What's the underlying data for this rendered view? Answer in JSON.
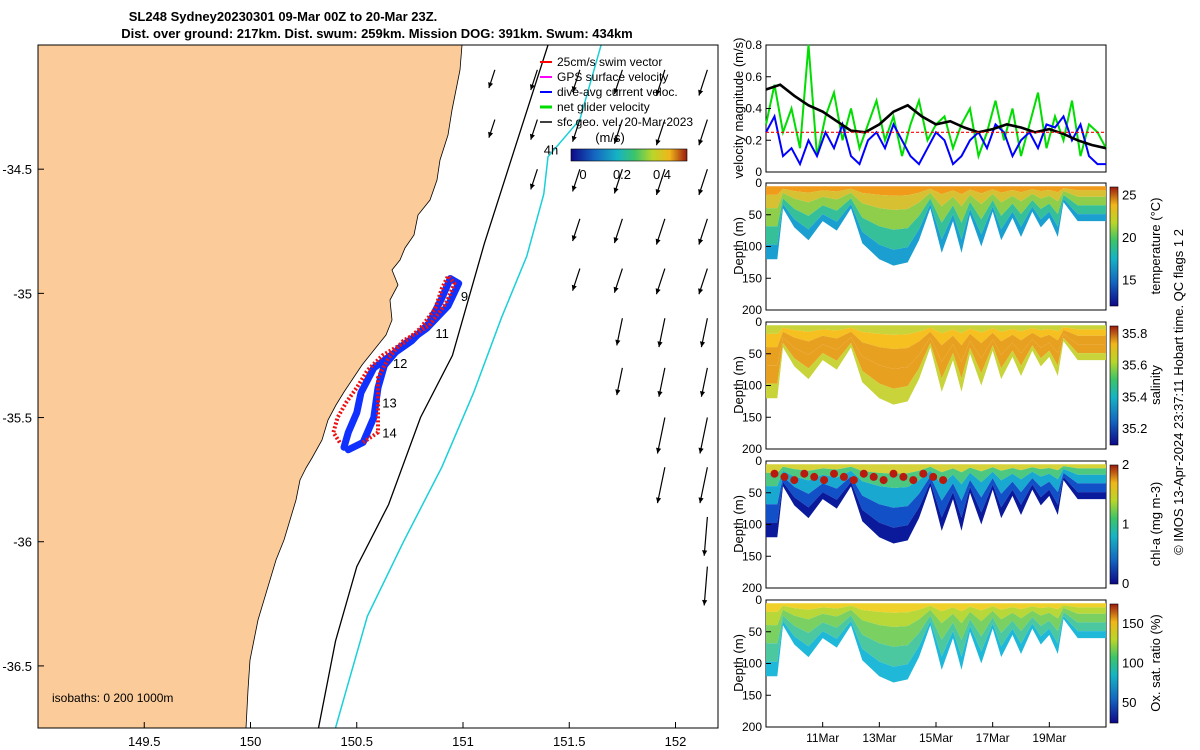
{
  "title": {
    "line1": "SL248 Sydney20230301 09-Mar 00Z to 20-Mar 23Z.",
    "line2": "Dist. over ground: 217km. Dist. swum: 259km. Mission DOG: 391km. Swum: 434km"
  },
  "side_label": "© IMOS 13-Apr-2024 23:37:11 Hobart time. QC flags 1  2",
  "chart_data": [
    {
      "type": "map",
      "name": "glider-track-map",
      "x_ticks": [
        "149.5",
        "150",
        "150.5",
        "151",
        "151.5",
        "152"
      ],
      "y_ticks": [
        "-34.5",
        "-35",
        "-35.5",
        "-36",
        "-36.5"
      ],
      "xlim": [
        149.0,
        152.2
      ],
      "ylim": [
        -36.75,
        -34.0
      ],
      "isobaths_label": "isobaths: 0   200  1000m",
      "legend": [
        {
          "label": "25cm/s swim vector",
          "color": "#ff0000"
        },
        {
          "label": "GPS surface velocity",
          "color": "#ff00ff"
        },
        {
          "label": "dive-avg current veloc.",
          "color": "#0000ff"
        },
        {
          "label": "net glider velocity",
          "color": "#00dd00"
        },
        {
          "label": "sfc geo. vel. 20-Mar-2023",
          "color": "#000000"
        }
      ],
      "colorbar": {
        "label": "(m/s)",
        "ticks": [
          "0",
          "0.2",
          "0.4"
        ],
        "range": [
          0,
          0.5
        ]
      },
      "track_labels": [
        {
          "text": "9",
          "lon": 150.99,
          "lat": -35.03
        },
        {
          "text": "11",
          "lon": 150.87,
          "lat": -35.18
        },
        {
          "text": "12",
          "lon": 150.67,
          "lat": -35.3
        },
        {
          "text": "13",
          "lon": 150.62,
          "lat": -35.46
        },
        {
          "text": "14",
          "lon": 150.62,
          "lat": -35.58
        },
        {
          "text": "4h",
          "lon": 151.38,
          "lat": -34.44
        }
      ],
      "track_red": [
        [
          150.42,
          -35.6
        ],
        [
          150.39,
          -35.56
        ],
        [
          150.41,
          -35.5
        ],
        [
          150.45,
          -35.44
        ],
        [
          150.5,
          -35.38
        ],
        [
          150.55,
          -35.31
        ],
        [
          150.62,
          -35.25
        ],
        [
          150.72,
          -35.2
        ],
        [
          150.8,
          -35.14
        ],
        [
          150.87,
          -35.06
        ],
        [
          150.9,
          -34.98
        ],
        [
          150.93,
          -34.93
        ],
        [
          150.96,
          -34.96
        ],
        [
          150.92,
          -35.04
        ],
        [
          150.84,
          -35.13
        ],
        [
          150.72,
          -35.19
        ],
        [
          150.65,
          -35.26
        ],
        [
          150.6,
          -35.34
        ],
        [
          150.6,
          -35.45
        ],
        [
          150.6,
          -35.56
        ],
        [
          150.53,
          -35.6
        ]
      ],
      "track_blue": [
        [
          150.44,
          -35.62
        ],
        [
          150.46,
          -35.56
        ],
        [
          150.5,
          -35.48
        ],
        [
          150.52,
          -35.4
        ],
        [
          150.58,
          -35.3
        ],
        [
          150.66,
          -35.25
        ],
        [
          150.76,
          -35.19
        ],
        [
          150.84,
          -35.12
        ],
        [
          150.9,
          -35.02
        ],
        [
          150.94,
          -34.94
        ],
        [
          150.98,
          -34.96
        ],
        [
          150.93,
          -35.05
        ],
        [
          150.83,
          -35.14
        ],
        [
          150.7,
          -35.22
        ],
        [
          150.63,
          -35.29
        ],
        [
          150.6,
          -35.38
        ],
        [
          150.58,
          -35.5
        ],
        [
          150.53,
          -35.6
        ],
        [
          150.46,
          -35.63
        ]
      ],
      "isobath_200": [
        [
          151.4,
          -34.0
        ],
        [
          151.25,
          -34.4
        ],
        [
          151.1,
          -34.8
        ],
        [
          150.95,
          -35.25
        ],
        [
          150.8,
          -35.5
        ],
        [
          150.65,
          -35.85
        ],
        [
          150.5,
          -36.1
        ],
        [
          150.4,
          -36.4
        ],
        [
          150.32,
          -36.75
        ]
      ],
      "isobath_1000": [
        [
          151.65,
          -34.0
        ],
        [
          151.55,
          -34.3
        ],
        [
          151.4,
          -34.45
        ],
        [
          151.38,
          -34.6
        ],
        [
          151.3,
          -34.85
        ],
        [
          151.18,
          -35.1
        ],
        [
          151.05,
          -35.4
        ],
        [
          150.9,
          -35.7
        ],
        [
          150.72,
          -36.0
        ],
        [
          150.55,
          -36.3
        ],
        [
          150.45,
          -36.6
        ],
        [
          150.4,
          -36.75
        ]
      ]
    },
    {
      "type": "line",
      "name": "velocity-magnitude",
      "ylabel": "velocity magnitude (m/s)",
      "ylim": [
        0,
        0.8
      ],
      "y_ticks": [
        "0",
        "0.2",
        "0.4",
        "0.6",
        "0.8"
      ],
      "x_range_days": [
        9.0,
        21.0
      ],
      "series": [
        {
          "name": "net glider velocity",
          "color": "#00dd00",
          "x": [
            9.0,
            9.3,
            9.6,
            9.9,
            10.2,
            10.5,
            10.8,
            11.1,
            11.4,
            11.7,
            12.0,
            12.3,
            12.6,
            12.9,
            13.2,
            13.5,
            13.8,
            14.1,
            14.4,
            14.7,
            15.0,
            15.3,
            15.6,
            15.9,
            16.2,
            16.5,
            16.8,
            17.1,
            17.4,
            17.7,
            18.0,
            18.3,
            18.6,
            18.9,
            19.2,
            19.5,
            19.8,
            20.1,
            20.4,
            20.7,
            21.0
          ],
          "values": [
            0.3,
            0.55,
            0.25,
            0.4,
            0.15,
            0.8,
            0.1,
            0.35,
            0.5,
            0.2,
            0.4,
            0.15,
            0.3,
            0.45,
            0.2,
            0.35,
            0.1,
            0.3,
            0.45,
            0.2,
            0.3,
            0.35,
            0.15,
            0.3,
            0.4,
            0.1,
            0.25,
            0.45,
            0.2,
            0.4,
            0.1,
            0.3,
            0.5,
            0.15,
            0.35,
            0.2,
            0.45,
            0.1,
            0.3,
            0.25,
            0.15
          ]
        },
        {
          "name": "dive-avg current veloc.",
          "color": "#0000ff",
          "x": [
            9.0,
            9.3,
            9.6,
            9.9,
            10.2,
            10.5,
            10.8,
            11.1,
            11.4,
            11.7,
            12.0,
            12.3,
            12.6,
            12.9,
            13.2,
            13.5,
            13.8,
            14.1,
            14.4,
            14.7,
            15.0,
            15.3,
            15.6,
            15.9,
            16.2,
            16.5,
            16.8,
            17.1,
            17.4,
            17.7,
            18.0,
            18.3,
            18.6,
            18.9,
            19.2,
            19.5,
            19.8,
            20.1,
            20.4,
            20.7,
            21.0
          ],
          "values": [
            0.25,
            0.35,
            0.1,
            0.15,
            0.05,
            0.2,
            0.1,
            0.25,
            0.15,
            0.3,
            0.1,
            0.05,
            0.2,
            0.25,
            0.15,
            0.3,
            0.2,
            0.1,
            0.05,
            0.15,
            0.25,
            0.2,
            0.05,
            0.1,
            0.2,
            0.25,
            0.15,
            0.3,
            0.25,
            0.1,
            0.2,
            0.25,
            0.15,
            0.3,
            0.28,
            0.35,
            0.2,
            0.3,
            0.1,
            0.05,
            0.05
          ]
        },
        {
          "name": "GPS surface velocity",
          "color": "#000000",
          "x": [
            9.0,
            9.5,
            10.0,
            10.5,
            11.0,
            11.5,
            12.0,
            12.5,
            13.0,
            13.5,
            14.0,
            14.5,
            15.0,
            15.5,
            16.0,
            16.5,
            17.0,
            17.5,
            18.0,
            18.5,
            19.0,
            19.5,
            20.0,
            20.5,
            21.0
          ],
          "values": [
            0.52,
            0.55,
            0.48,
            0.42,
            0.38,
            0.32,
            0.26,
            0.25,
            0.3,
            0.38,
            0.42,
            0.35,
            0.3,
            0.32,
            0.28,
            0.25,
            0.27,
            0.3,
            0.28,
            0.25,
            0.27,
            0.24,
            0.2,
            0.17,
            0.15
          ]
        },
        {
          "name": "25cm/s swim vector",
          "color": "#ff0000",
          "x": [
            9.0,
            21.0
          ],
          "values": [
            0.25,
            0.25
          ]
        }
      ]
    },
    {
      "type": "heatmap",
      "name": "temperature-section",
      "ylabel": "Depth (m)",
      "y_ticks": [
        "0",
        "50",
        "100",
        "150",
        "200"
      ],
      "colorbar_label": "temperature (°C)",
      "colorbar_ticks": [
        "15",
        "20",
        "25"
      ],
      "colorbar_range": [
        12,
        26
      ]
    },
    {
      "type": "heatmap",
      "name": "salinity-section",
      "ylabel": "Depth (m)",
      "y_ticks": [
        "0",
        "50",
        "100",
        "150",
        "200"
      ],
      "colorbar_label": "salinity",
      "colorbar_ticks": [
        "35.2",
        "35.4",
        "35.6",
        "35.8"
      ],
      "colorbar_range": [
        35.1,
        35.85
      ]
    },
    {
      "type": "heatmap",
      "name": "chl-a-section",
      "ylabel": "Depth (m)",
      "y_ticks": [
        "0",
        "50",
        "100",
        "150",
        "200"
      ],
      "colorbar_label": "chl-a (mg m-3)",
      "colorbar_ticks": [
        "0",
        "1",
        "2"
      ],
      "colorbar_range": [
        0,
        2
      ]
    },
    {
      "type": "heatmap",
      "name": "oxygen-section",
      "ylabel": "Depth (m)",
      "y_ticks": [
        "0",
        "50",
        "100",
        "150",
        "200"
      ],
      "colorbar_label": "Ox. sat. ratio (%)",
      "colorbar_ticks": [
        "50",
        "100",
        "150"
      ],
      "colorbar_range": [
        25,
        175
      ],
      "x_ticks": [
        "11Mar",
        "13Mar",
        "15Mar",
        "17Mar",
        "19Mar"
      ]
    }
  ]
}
